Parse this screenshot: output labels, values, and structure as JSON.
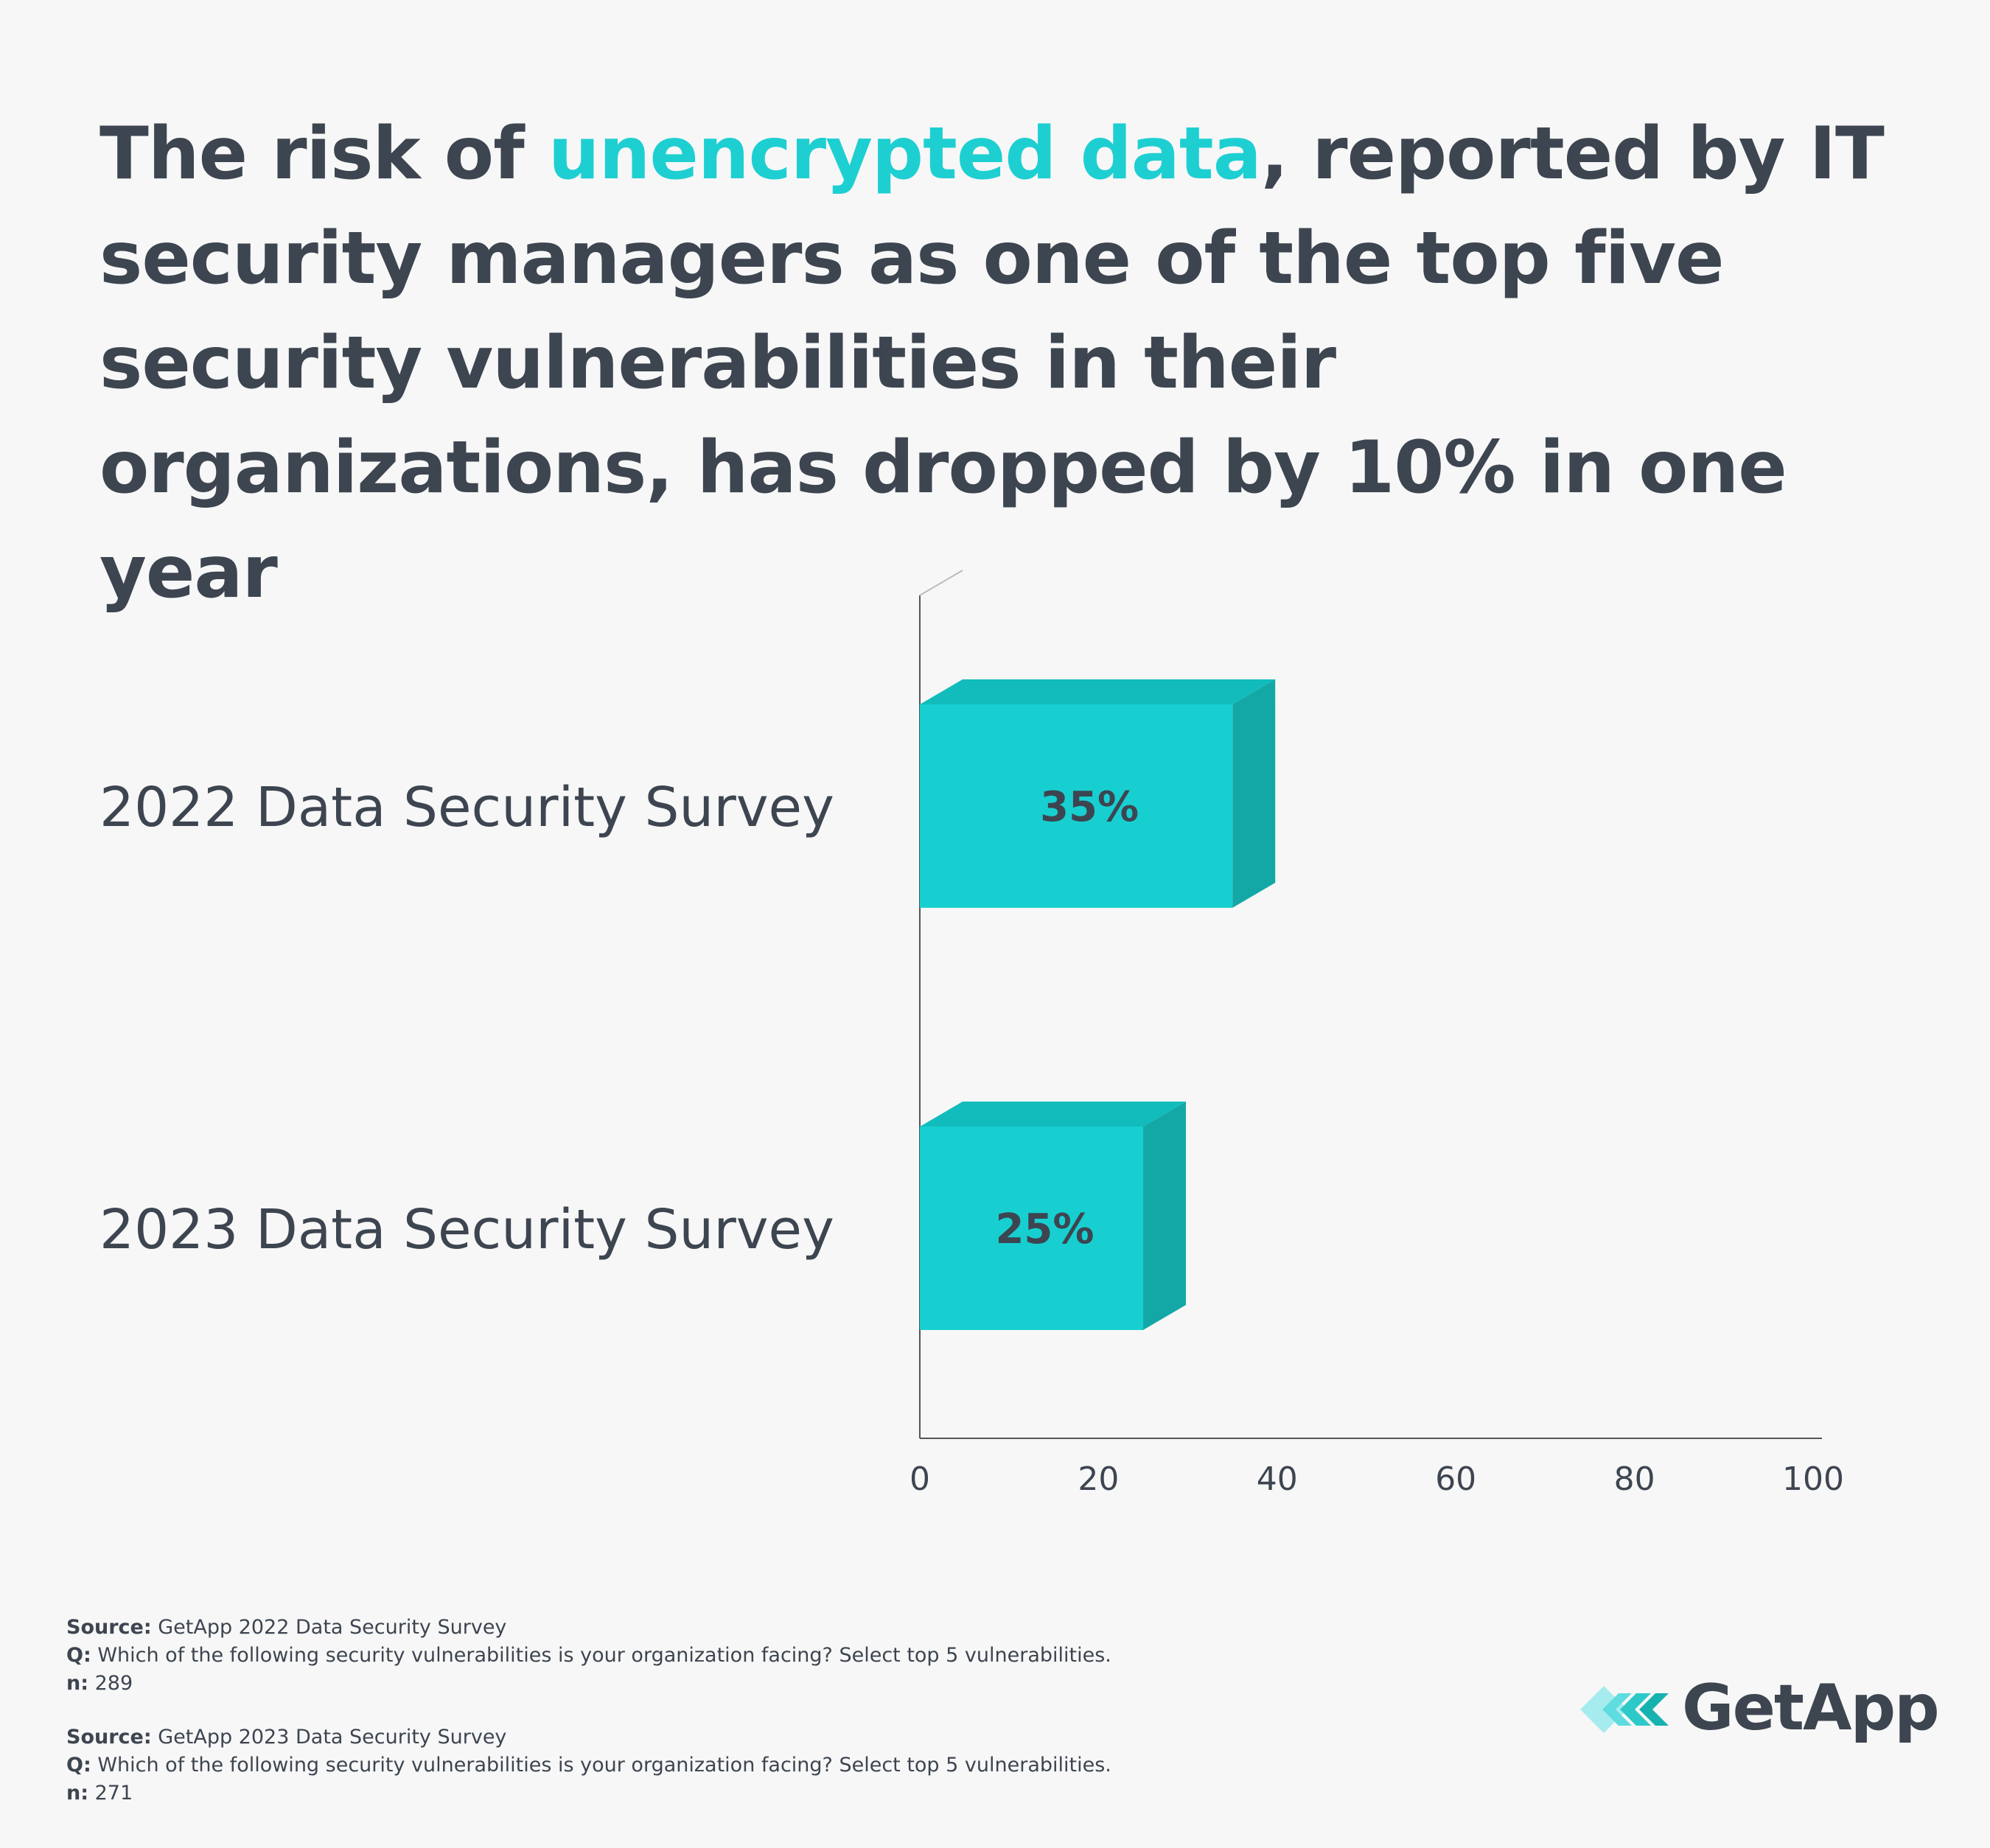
{
  "title": {
    "part1": "The risk of ",
    "highlight": "unencrypted data",
    "part2": ", reported by IT security managers as one of the top five security vulnerabilities in their organizations, has dropped by 10% in one year"
  },
  "colors": {
    "accent": "#1ecfd2",
    "bar_front": "#17cfd0",
    "bar_top": "#12bcbc",
    "bar_side": "#13a8a6",
    "text": "#3d4550",
    "axis": "#555555",
    "background": "#f7f7f7"
  },
  "chart_data": {
    "type": "bar",
    "orientation": "horizontal",
    "categories": [
      "2022 Data Security Survey",
      "2023 Data Security Survey"
    ],
    "values": [
      35,
      25
    ],
    "data_labels": [
      "35%",
      "25%"
    ],
    "xlim": [
      0,
      100
    ],
    "xticks": [
      0,
      20,
      40,
      60,
      80,
      100
    ],
    "xtick_labels": [
      "0",
      "20",
      "40",
      "60",
      "80",
      "100"
    ],
    "xlabel": "",
    "ylabel": "",
    "grid": false,
    "style": "3d"
  },
  "footer": {
    "sources": [
      {
        "source_label": "Source:",
        "source_text": " GetApp 2022 Data Security Survey",
        "q_label": "Q:",
        "q_text": " Which of the following security vulnerabilities is your organization facing? Select top 5 vulnerabilities.",
        "n_label": "n:",
        "n_text": " 289"
      },
      {
        "source_label": "Source:",
        "source_text": " GetApp 2023 Data Security Survey",
        "q_label": "Q:",
        "q_text": " Which of the following security vulnerabilities is your organization facing? Select top 5 vulnerabilities.",
        "n_label": "n:",
        "n_text": " 271"
      }
    ]
  },
  "logo": {
    "text": "GetApp",
    "icon": "getapp-chevrons-icon"
  }
}
